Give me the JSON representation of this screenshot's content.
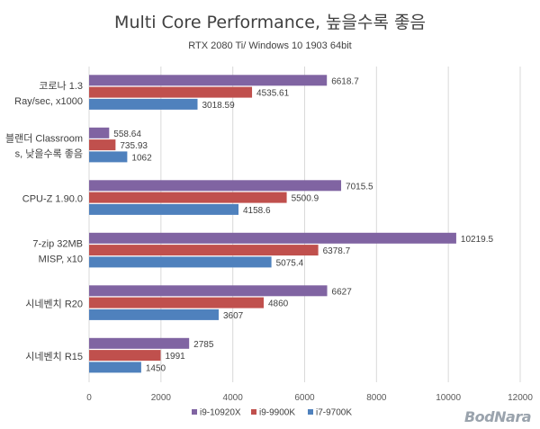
{
  "chart_data": {
    "type": "bar",
    "orientation": "horizontal",
    "title": "Multi Core Performance, 높을수록 좋음",
    "subtitle": "RTX 2080 Ti/ Windows 10 1903 64bit",
    "categories": [
      [
        "코로나 1.3",
        "Ray/sec, x1000"
      ],
      [
        "블랜더 Classroom",
        "s, 낮을수록 좋음"
      ],
      [
        "CPU-Z 1.90.0"
      ],
      [
        "7-zip 32MB",
        "MISP, x10"
      ],
      [
        "시네벤치 R20"
      ],
      [
        "시네벤치 R15"
      ]
    ],
    "series": [
      {
        "name": "i9-10920X",
        "color": "#8064a2",
        "values": [
          6618.7,
          558.64,
          7015.5,
          10219.5,
          6627,
          2785
        ],
        "labels": [
          "6618.7",
          "558.64",
          "7015.5",
          "10219.5",
          "6627",
          "2785"
        ]
      },
      {
        "name": "i9-9900K",
        "color": "#c0504d",
        "values": [
          4535.61,
          735.93,
          5500.9,
          6378.7,
          4860,
          1991
        ],
        "labels": [
          "4535.61",
          "735.93",
          "5500.9",
          "6378.7",
          "4860",
          "1991"
        ]
      },
      {
        "name": "i7-9700K",
        "color": "#4f81bd",
        "values": [
          3018.59,
          1062,
          4158.6,
          5075.4,
          3607,
          1450
        ],
        "labels": [
          "3018.59",
          "1062",
          "4158.6",
          "5075.4",
          "3607",
          "1450"
        ]
      }
    ],
    "xlim": [
      0,
      12000
    ],
    "xticks": [
      "0",
      "2000",
      "4000",
      "6000",
      "8000",
      "10000",
      "12000"
    ],
    "grid": true,
    "legend_position": "bottom"
  },
  "watermark": "BodNara"
}
